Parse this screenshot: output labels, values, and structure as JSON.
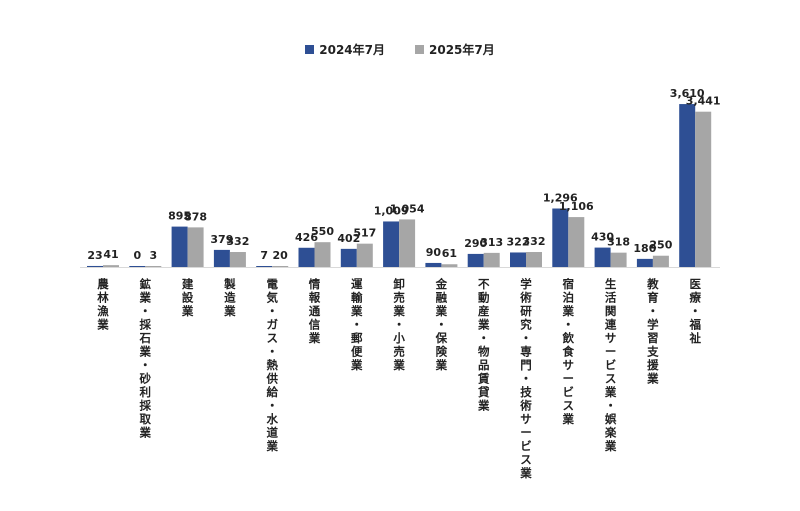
{
  "chart_data": {
    "type": "bar",
    "categories": [
      "農林漁業",
      "鉱業・採石業・砂利採取業",
      "建設業",
      "製造業",
      "電気・ガス・熱供給・水道業",
      "情報通信業",
      "運輸業・郵便業",
      "卸売業・小売業",
      "金融業・保険業",
      "不動産業・物品賃貸業",
      "学術研究・専門・技術サービス業",
      "宿泊業・飲食サービス業",
      "生活関連サービス業・娯楽業",
      "教育・学習支援業",
      "医療・福祉"
    ],
    "series": [
      {
        "name": "2024年7月",
        "values": [
          23,
          0,
          895,
          379,
          7,
          426,
          402,
          1009,
          90,
          290,
          322,
          1296,
          430,
          180,
          3610
        ],
        "labels": [
          "23",
          "0",
          "895",
          "379",
          "7",
          "426",
          "402",
          "1,009",
          "90",
          "290",
          "322",
          "1,296",
          "430",
          "180",
          "3,610"
        ]
      },
      {
        "name": "2025年7月",
        "values": [
          41,
          3,
          878,
          332,
          20,
          550,
          517,
          1054,
          61,
          313,
          332,
          1106,
          318,
          250,
          3441
        ],
        "labels": [
          "41",
          "3",
          "878",
          "332",
          "20",
          "550",
          "517",
          "1,054",
          "61",
          "313",
          "332",
          "1,106",
          "318",
          "250",
          "3,441"
        ]
      }
    ],
    "ylim": [
      0,
      3700
    ],
    "grid": false,
    "legend_position": "top-center",
    "colors": [
      "#2e4f94",
      "#a6a6a6"
    ]
  }
}
